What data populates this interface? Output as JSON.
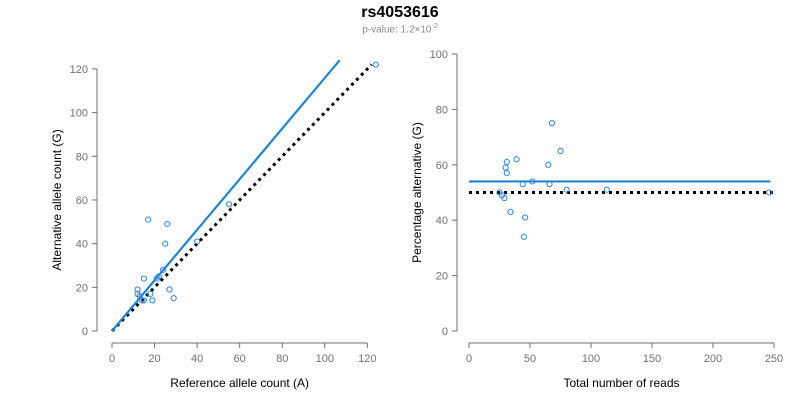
{
  "header": {
    "title": "rs4053616",
    "subtitle_prefix": "p-value: 1.2×10",
    "subtitle_exponent": "-2"
  },
  "colors": {
    "accent": "#1f84d8",
    "points": "#2b86d6",
    "reference_line": "#000000",
    "axis": "#707070"
  },
  "chart_data": [
    {
      "type": "scatter",
      "xlabel": "Reference allele count (A)",
      "ylabel": "Alternative allele count (G)",
      "xlim": [
        0,
        125
      ],
      "ylim": [
        0,
        125
      ],
      "xticks": [
        0,
        20,
        40,
        60,
        80,
        100,
        120
      ],
      "yticks": [
        0,
        20,
        40,
        60,
        80,
        100,
        120
      ],
      "points": [
        [
          12,
          19
        ],
        [
          12,
          17
        ],
        [
          13,
          16
        ],
        [
          14,
          14
        ],
        [
          15,
          14
        ],
        [
          15,
          24
        ],
        [
          17,
          51
        ],
        [
          18,
          17
        ],
        [
          19,
          14
        ],
        [
          21,
          24
        ],
        [
          22,
          25
        ],
        [
          24,
          28
        ],
        [
          25,
          40
        ],
        [
          26,
          49
        ],
        [
          27,
          19
        ],
        [
          29,
          15
        ],
        [
          40,
          41
        ],
        [
          55,
          58
        ],
        [
          124,
          122
        ]
      ],
      "fit_line": {
        "x": [
          0,
          107
        ],
        "y": [
          0,
          124
        ],
        "style": "solid"
      },
      "reference_line": {
        "x": [
          0,
          122
        ],
        "y": [
          0,
          122
        ],
        "style": "dotted"
      },
      "grid": false
    },
    {
      "type": "scatter",
      "xlabel": "Total number of reads",
      "ylabel": "Percentage alternative (G)",
      "xlim": [
        0,
        250
      ],
      "ylim": [
        0,
        100
      ],
      "xticks": [
        0,
        50,
        100,
        150,
        200,
        250
      ],
      "yticks": [
        0,
        20,
        40,
        60,
        80,
        100
      ],
      "points": [
        [
          25,
          50
        ],
        [
          27,
          49
        ],
        [
          29,
          48
        ],
        [
          30,
          59
        ],
        [
          31,
          57
        ],
        [
          31,
          61
        ],
        [
          34,
          43
        ],
        [
          39,
          62
        ],
        [
          44,
          53
        ],
        [
          45,
          34
        ],
        [
          46,
          41
        ],
        [
          52,
          54
        ],
        [
          65,
          60
        ],
        [
          66,
          53
        ],
        [
          68,
          75
        ],
        [
          75,
          65
        ],
        [
          80,
          51
        ],
        [
          113,
          51
        ],
        [
          246,
          50
        ]
      ],
      "fit_line": {
        "x": [
          0,
          247
        ],
        "y": [
          54,
          54
        ],
        "style": "solid"
      },
      "reference_line": {
        "x": [
          0,
          250
        ],
        "y": [
          50,
          50
        ],
        "style": "dotted"
      },
      "grid": false
    }
  ]
}
